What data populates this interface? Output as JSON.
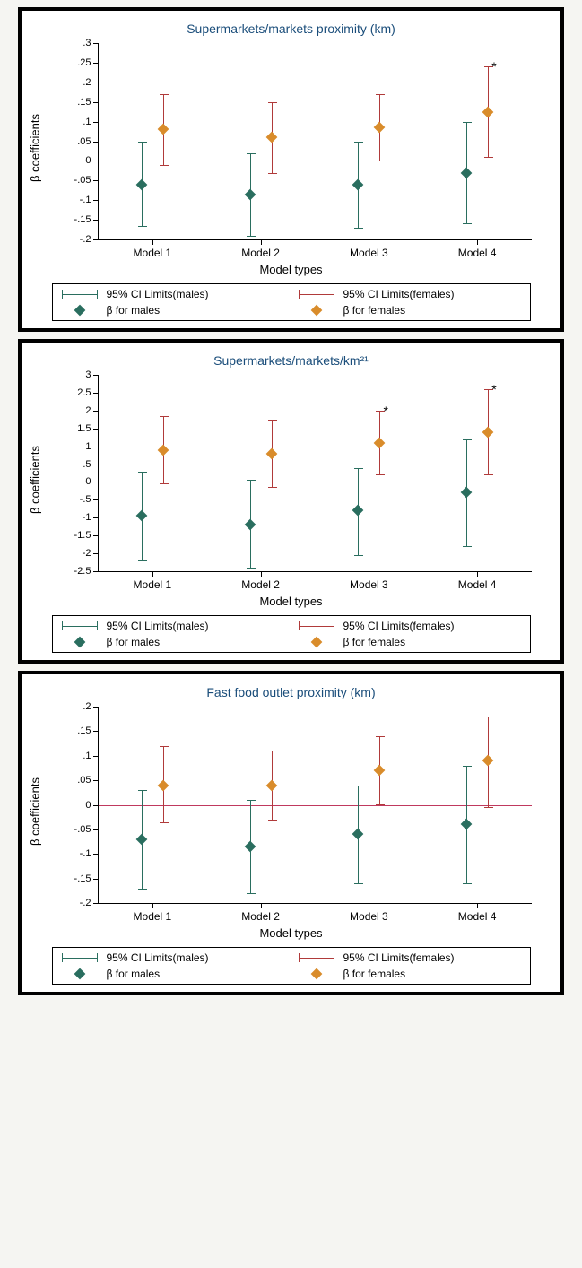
{
  "colors": {
    "male": "#2a6e5f",
    "female": "#d98c2b",
    "ci_female": "#b03a3a",
    "zero": "#c0395e",
    "title": "#1a4d7a"
  },
  "legend": {
    "ci_males": "95% CI Limits(males)",
    "ci_females": "95% CI Limits(females)",
    "beta_males": "β for males",
    "beta_females": "β for females"
  },
  "axis": {
    "xlabel": "Model types",
    "ylabel": "β coefficients",
    "categories": [
      "Model 1",
      "Model 2",
      "Model 3",
      "Model 4"
    ],
    "male_offset": -0.1,
    "female_offset": 0.1
  },
  "panels": [
    {
      "title": "Supermarkets/markets proximity (km)",
      "ymin": -0.2,
      "ymax": 0.3,
      "yticks": [
        -0.2,
        -0.15,
        -0.1,
        -0.05,
        0,
        0.05,
        0.1,
        0.15,
        0.2,
        0.25,
        0.3
      ],
      "yticklabels": [
        "-.2",
        "-.15",
        "-.1",
        "-.05",
        "0",
        ".05",
        ".1",
        ".15",
        ".2",
        ".25",
        ".3"
      ],
      "males": [
        {
          "b": -0.06,
          "lo": -0.165,
          "hi": 0.05
        },
        {
          "b": -0.085,
          "lo": -0.19,
          "hi": 0.02
        },
        {
          "b": -0.06,
          "lo": -0.17,
          "hi": 0.05
        },
        {
          "b": -0.03,
          "lo": -0.16,
          "hi": 0.1
        }
      ],
      "females": [
        {
          "b": 0.08,
          "lo": -0.01,
          "hi": 0.17
        },
        {
          "b": 0.06,
          "lo": -0.03,
          "hi": 0.15
        },
        {
          "b": 0.085,
          "lo": 0.0,
          "hi": 0.17
        },
        {
          "b": 0.125,
          "lo": 0.01,
          "hi": 0.24,
          "star": true
        }
      ]
    },
    {
      "title": "Supermarkets/markets/km²¹",
      "ymin": -2.5,
      "ymax": 3.0,
      "yticks": [
        -2.5,
        -2,
        -1.5,
        -1,
        -0.5,
        0,
        0.5,
        1,
        1.5,
        2,
        2.5,
        3
      ],
      "yticklabels": [
        "-2.5",
        "-2",
        "-1.5",
        "-1",
        "-.5",
        "0",
        ".5",
        "1",
        "1.5",
        "2",
        "2.5",
        "3"
      ],
      "males": [
        {
          "b": -0.95,
          "lo": -2.2,
          "hi": 0.3
        },
        {
          "b": -1.2,
          "lo": -2.4,
          "hi": 0.05
        },
        {
          "b": -0.8,
          "lo": -2.05,
          "hi": 0.4
        },
        {
          "b": -0.3,
          "lo": -1.8,
          "hi": 1.2
        }
      ],
      "females": [
        {
          "b": 0.9,
          "lo": -0.05,
          "hi": 1.85
        },
        {
          "b": 0.8,
          "lo": -0.15,
          "hi": 1.75
        },
        {
          "b": 1.1,
          "lo": 0.2,
          "hi": 2.0,
          "star": true
        },
        {
          "b": 1.4,
          "lo": 0.2,
          "hi": 2.6,
          "star": true
        }
      ]
    },
    {
      "title": "Fast food outlet proximity (km)",
      "ymin": -0.2,
      "ymax": 0.2,
      "yticks": [
        -0.2,
        -0.15,
        -0.1,
        -0.05,
        0,
        0.05,
        0.1,
        0.15,
        0.2
      ],
      "yticklabels": [
        "-.2",
        "-.15",
        "-.1",
        "-.05",
        "0",
        ".05",
        ".1",
        ".15",
        ".2"
      ],
      "males": [
        {
          "b": -0.07,
          "lo": -0.17,
          "hi": 0.03
        },
        {
          "b": -0.085,
          "lo": -0.18,
          "hi": 0.01
        },
        {
          "b": -0.06,
          "lo": -0.16,
          "hi": 0.04
        },
        {
          "b": -0.04,
          "lo": -0.16,
          "hi": 0.08
        }
      ],
      "females": [
        {
          "b": 0.04,
          "lo": -0.035,
          "hi": 0.12
        },
        {
          "b": 0.04,
          "lo": -0.03,
          "hi": 0.11
        },
        {
          "b": 0.07,
          "lo": 0.0,
          "hi": 0.14
        },
        {
          "b": 0.09,
          "lo": -0.005,
          "hi": 0.18
        }
      ]
    }
  ]
}
